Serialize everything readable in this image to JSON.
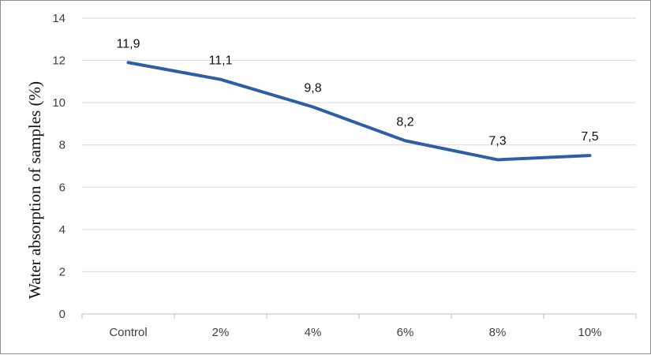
{
  "chart_data": {
    "type": "line",
    "title": "",
    "xlabel": "",
    "ylabel": "Water absorption of samples (%)",
    "categories": [
      "Control",
      "2%",
      "4%",
      "6%",
      "8%",
      "10%"
    ],
    "series": [
      {
        "values": [
          11.9,
          11.1,
          9.8,
          8.2,
          7.3,
          7.5
        ],
        "labels": [
          "11,9",
          "11,1",
          "9,8",
          "8,2",
          "7,3",
          "7,5"
        ]
      }
    ],
    "ylim": [
      0,
      14
    ],
    "yticks": [
      0,
      2,
      4,
      6,
      8,
      10,
      12,
      14
    ],
    "grid": true,
    "legend": "none",
    "colors": {
      "line": "#2e5fa6",
      "grid": "#d9d9d9",
      "axis": "#bfbfbf"
    }
  }
}
